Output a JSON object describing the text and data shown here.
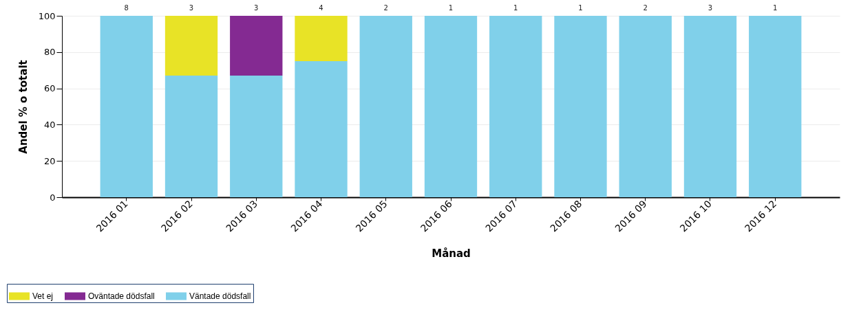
{
  "chart_data": {
    "type": "bar",
    "stacked": true,
    "ylabel": "Andel % o totalt",
    "xlabel": "Månad",
    "categories": [
      "2016 01",
      "2016 02",
      "2016 03",
      "2016 04",
      "2016 05",
      "2016 06",
      "2016 07",
      "2016 08",
      "2016 09",
      "2016 10",
      "2016 12"
    ],
    "series": [
      {
        "name": "Väntade dödsfall",
        "color": "#80d0ea",
        "values": [
          100,
          67,
          67,
          75,
          100,
          100,
          100,
          100,
          100,
          100,
          100
        ]
      },
      {
        "name": "Oväntade dödsfall",
        "color": "#842a92",
        "values": [
          null,
          null,
          33,
          null,
          null,
          null,
          null,
          null,
          null,
          null,
          null
        ]
      },
      {
        "name": "Vet ej",
        "color": "#e8e326",
        "values": [
          null,
          33,
          null,
          25,
          null,
          null,
          null,
          null,
          null,
          null,
          null
        ]
      }
    ],
    "annotations": [
      {
        "text": "8",
        "x": "2016 01",
        "y": 100
      },
      {
        "text": "3",
        "x": "2016 02",
        "y": 100
      },
      {
        "text": "3",
        "x": "2016 03",
        "y": 100
      },
      {
        "text": "4",
        "x": "2016 04",
        "y": 100
      },
      {
        "text": "2",
        "x": "2016 05",
        "y": 100
      },
      {
        "text": "1",
        "x": "2016 06",
        "y": 100
      },
      {
        "text": "1",
        "x": "2016 07",
        "y": 100
      },
      {
        "text": "1",
        "x": "2016 08",
        "y": 100
      },
      {
        "text": "2",
        "x": "2016 09",
        "y": 100
      },
      {
        "text": "3",
        "x": "2016 10",
        "y": 100
      },
      {
        "text": "1",
        "x": "2016 12",
        "y": 100
      }
    ],
    "ylim": [
      0,
      100
    ],
    "yticks": [
      0,
      20,
      40,
      60,
      80,
      100
    ],
    "grid": "y",
    "legend": "bottom left"
  }
}
